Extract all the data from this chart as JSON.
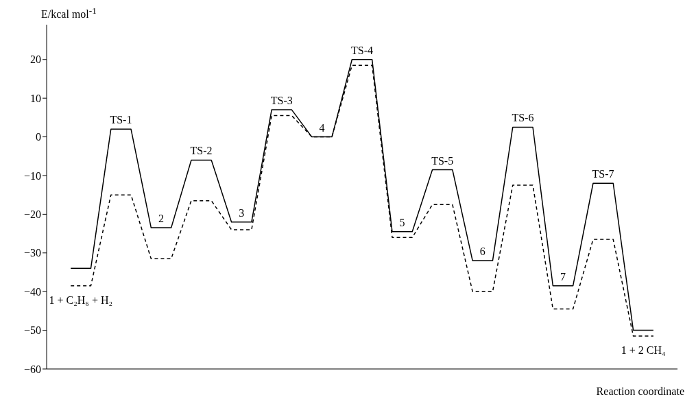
{
  "chart_data": {
    "type": "line",
    "ylabel": "E/kcal mol$^{-1}$",
    "xlabel": "Reaction coordinate",
    "categories": [
      null,
      null,
      null,
      null,
      null,
      null,
      null,
      null,
      null,
      null,
      null,
      null,
      null,
      null,
      null,
      null,
      null,
      null,
      null,
      null,
      null,
      null,
      null,
      null,
      null,
      null,
      null,
      null,
      null,
      null
    ],
    "series": [
      {
        "color": "#000000",
        "line_style": "solid",
        "values": [
          -34,
          -34,
          2,
          2,
          -23.5,
          -23.5,
          -6,
          -6,
          -22,
          -22,
          7,
          7,
          0,
          0,
          20,
          20,
          -24.5,
          -24.5,
          -8.5,
          -8.5,
          -32,
          -32,
          2.5,
          2.5,
          -38.5,
          -38.5,
          -12,
          -12,
          -50,
          -50
        ]
      },
      {
        "color": "#000000",
        "line_style": "dashed",
        "values": [
          -38.5,
          -38.5,
          -15,
          -15,
          -31.5,
          -31.5,
          -16.5,
          -16.5,
          -24,
          -24,
          5.5,
          5.5,
          0,
          0,
          18.5,
          18.5,
          -26,
          -26,
          -17.5,
          -17.5,
          -40,
          -40,
          -12.5,
          -12.5,
          -44.5,
          -44.5,
          -26.5,
          -26.5,
          -51.5,
          -51.5
        ]
      }
    ],
    "annotations": [
      {
        "text": "1 + C₂H₆ + H₂",
        "y": -38.5
      },
      {
        "text": "TS-1",
        "y": 2
      },
      {
        "text": "2",
        "y": -23.5
      },
      {
        "text": "TS-2",
        "y": -6
      },
      {
        "text": "3",
        "y": -22
      },
      {
        "text": "TS-3",
        "y": 7
      },
      {
        "text": "4",
        "y": 0
      },
      {
        "text": "TS-4",
        "y": 20
      },
      {
        "text": "5",
        "y": -24.5
      },
      {
        "text": "TS-5",
        "y": -8.5
      },
      {
        "text": "6",
        "y": -32
      },
      {
        "text": "TS-6",
        "y": 2.5
      },
      {
        "text": "7",
        "y": -38.5
      },
      {
        "text": "TS-7",
        "y": -12
      },
      {
        "text": "1 + 2 CH₄",
        "y": -51.5
      }
    ],
    "ylim": [
      -60,
      29
    ],
    "yticks": [
      -60,
      -50,
      -40,
      -30,
      -20,
      -10,
      0,
      10,
      20
    ],
    "grid": false
  }
}
